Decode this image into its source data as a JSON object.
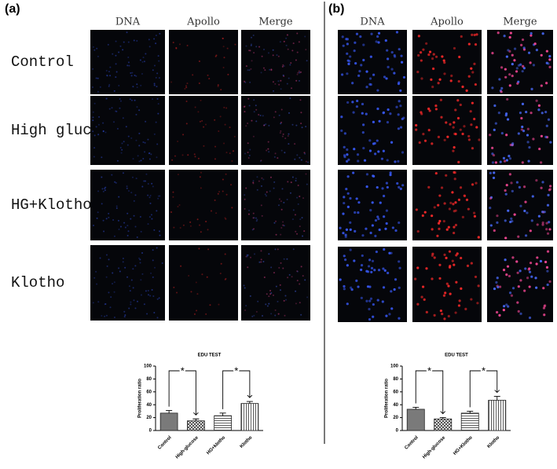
{
  "panels": [
    {
      "label": "(a)",
      "columns": [
        "DNA",
        "Apollo",
        "Merge"
      ],
      "rows": [
        "Control",
        "High glucose",
        "HG+Klotho",
        "Klotho"
      ],
      "chart_data": {
        "type": "bar",
        "title": "EDU TEST",
        "y_label": "Proliferation ratio",
        "categories": [
          "Control",
          "High-glucose",
          "HG+klotho",
          "Klotho"
        ],
        "values": [
          27,
          15,
          23,
          42
        ],
        "errors": [
          4,
          3,
          4,
          3
        ],
        "ylim": [
          0,
          100
        ],
        "yticks": [
          0,
          20,
          40,
          60,
          80,
          100
        ],
        "annotations": [
          "*",
          "*"
        ]
      }
    },
    {
      "label": "(b)",
      "columns": [
        "DNA",
        "Apollo",
        "Merge"
      ],
      "chart_data": {
        "type": "bar",
        "title": "EDU TEST",
        "y_label": "Proliferation ratio",
        "categories": [
          "Control",
          "High-glucose",
          "HG+Klotho",
          "Klotho"
        ],
        "values": [
          33,
          18,
          27,
          47
        ],
        "errors": [
          3,
          2,
          3,
          6
        ],
        "ylim": [
          0,
          100
        ],
        "yticks": [
          0,
          20,
          40,
          60,
          80,
          100
        ],
        "annotations": [
          "*",
          "*"
        ]
      }
    }
  ]
}
